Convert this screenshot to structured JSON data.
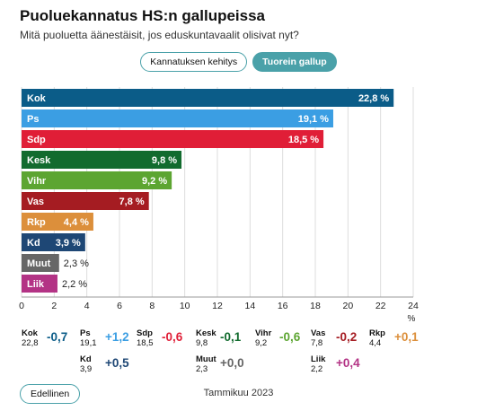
{
  "title": "Puoluekannatus HS:n gallupeissa",
  "subtitle": "Mitä puoluetta äänestäisit, jos eduskuntavaalit olisivat nyt?",
  "tabs": [
    {
      "label": "Kannatuksen kehitys",
      "active": false
    },
    {
      "label": "Tuorein gallup",
      "active": true
    }
  ],
  "chart_data": {
    "type": "bar",
    "orientation": "horizontal",
    "categories": [
      "Kok",
      "Ps",
      "Sdp",
      "Kesk",
      "Vihr",
      "Vas",
      "Rkp",
      "Kd",
      "Muut",
      "Liik"
    ],
    "values": [
      22.8,
      19.1,
      18.5,
      9.8,
      9.2,
      7.8,
      4.4,
      3.9,
      2.3,
      2.2
    ],
    "value_labels": [
      "22,8 %",
      "19,1 %",
      "18,5 %",
      "9,8 %",
      "9,2 %",
      "7,8 %",
      "4,4 %",
      "3,9 %",
      "2,3 %",
      "2,2 %"
    ],
    "colors": [
      "#0b5c88",
      "#3b9ee3",
      "#e01e37",
      "#126b2e",
      "#5ca531",
      "#a51c22",
      "#dc8f3b",
      "#1e4775",
      "#666666",
      "#b33385"
    ],
    "xlim": [
      0,
      24
    ],
    "xticks": [
      "0",
      "2",
      "4",
      "6",
      "8",
      "10",
      "12",
      "14",
      "16",
      "18",
      "20",
      "22",
      "24"
    ],
    "xunit": "%",
    "grid": true
  },
  "changes": [
    {
      "party": "Kok",
      "value": "22,8",
      "change": "-0,7",
      "color": "#0b5c88"
    },
    {
      "party": "Ps",
      "value": "19,1",
      "change": "+1,2",
      "color": "#3b9ee3"
    },
    {
      "party": "Sdp",
      "value": "18,5",
      "change": "-0,6",
      "color": "#e01e37"
    },
    {
      "party": "Kesk",
      "value": "9,8",
      "change": "-0,1",
      "color": "#126b2e"
    },
    {
      "party": "Vihr",
      "value": "9,2",
      "change": "-0,6",
      "color": "#5ca531"
    },
    {
      "party": "Vas",
      "value": "7,8",
      "change": "-0,2",
      "color": "#a51c22"
    },
    {
      "party": "Rkp",
      "value": "4,4",
      "change": "+0,1",
      "color": "#dc8f3b"
    },
    {
      "party": "Kd",
      "value": "3,9",
      "change": "+0,5",
      "color": "#1e4775"
    },
    {
      "party": "Muut",
      "value": "2,3",
      "change": "+0,0",
      "color": "#666666"
    },
    {
      "party": "Liik",
      "value": "2,2",
      "change": "+0,4",
      "color": "#b33385"
    }
  ],
  "footer": {
    "prev_label": "Edellinen",
    "period": "Tammikuu 2023"
  }
}
